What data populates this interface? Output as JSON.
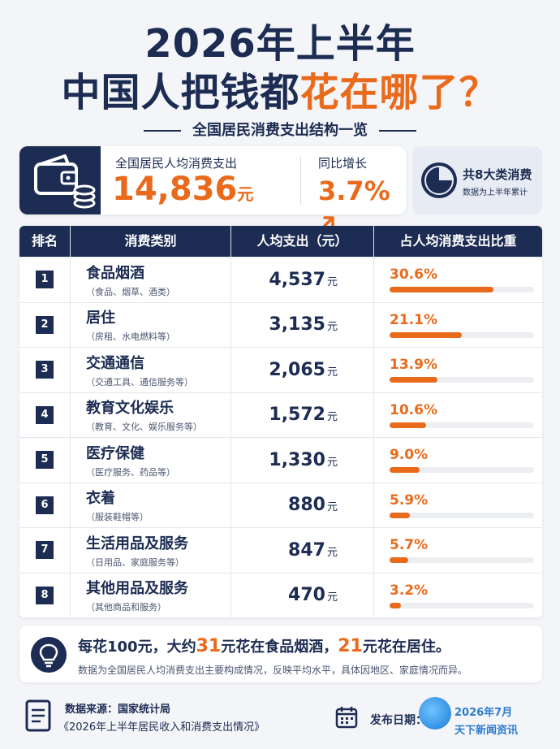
{
  "header": {
    "title_line1": "2026年上半年",
    "title_line2_dark": "中国人把钱都",
    "title_line2_orange": "花在哪了？",
    "subtitle": "全国居民消费支出结构一览"
  },
  "summary": {
    "label": "全国居民人均消费支出",
    "value": "14,836",
    "unit": "元",
    "yoy_label": "同比增长",
    "yoy_value": "3.7%",
    "categories_main": "共8大类消费",
    "categories_sub": "数据为上半年累计"
  },
  "table": {
    "headers": [
      "排名",
      "消费类别",
      "人均支出（元）",
      "占人均消费支出比重"
    ],
    "unit": "元",
    "rows": [
      {
        "rank": "1",
        "name": "食品烟酒",
        "desc": "（食品、烟草、酒类）",
        "amount": "4,537",
        "pct": "30.6%",
        "share": 30.6
      },
      {
        "rank": "2",
        "name": "居住",
        "desc": "（房租、水电燃料等）",
        "amount": "3,135",
        "pct": "21.1%",
        "share": 21.1
      },
      {
        "rank": "3",
        "name": "交通通信",
        "desc": "（交通工具、通信服务等）",
        "amount": "2,065",
        "pct": "13.9%",
        "share": 13.9
      },
      {
        "rank": "4",
        "name": "教育文化娱乐",
        "desc": "（教育、文化、娱乐服务等）",
        "amount": "1,572",
        "pct": "10.6%",
        "share": 10.6
      },
      {
        "rank": "5",
        "name": "医疗保健",
        "desc": "（医疗服务、药品等）",
        "amount": "1,330",
        "pct": "9.0%",
        "share": 9.0
      },
      {
        "rank": "6",
        "name": "衣着",
        "desc": "（服装鞋帽等）",
        "amount": "880",
        "pct": "5.9%",
        "share": 5.9
      },
      {
        "rank": "7",
        "name": "生活用品及服务",
        "desc": "（日用品、家庭服务等）",
        "amount": "847",
        "pct": "5.7%",
        "share": 5.7
      },
      {
        "rank": "8",
        "name": "其他用品及服务",
        "desc": "（其他商品和服务）",
        "amount": "470",
        "pct": "3.2%",
        "share": 3.2
      }
    ]
  },
  "tip": {
    "p1": "每花100元，大约",
    "n1": "31",
    "p2": "元花在食品烟酒，",
    "n2": "21",
    "p3": "元花在居住。",
    "note": "数据为全国居民人均消费支出主要构成情况，反映平均水平，具体因地区、家庭情况而异。"
  },
  "footer": {
    "source_label": "数据来源：国家统计局",
    "source_doc": "《2026年上半年居民收入和消费支出情况》",
    "date_label": "发布日期：",
    "watermark_line1": "2026年7月",
    "watermark_line2": "天下新闻资讯"
  },
  "colors": {
    "navy": "#1c2c52",
    "orange": "#ea6a1c"
  },
  "icons": [
    "wallet-icon",
    "coins-icon",
    "pie-chart-icon",
    "arrow-up-icon",
    "lightbulb-icon",
    "document-icon",
    "calendar-icon"
  ]
}
